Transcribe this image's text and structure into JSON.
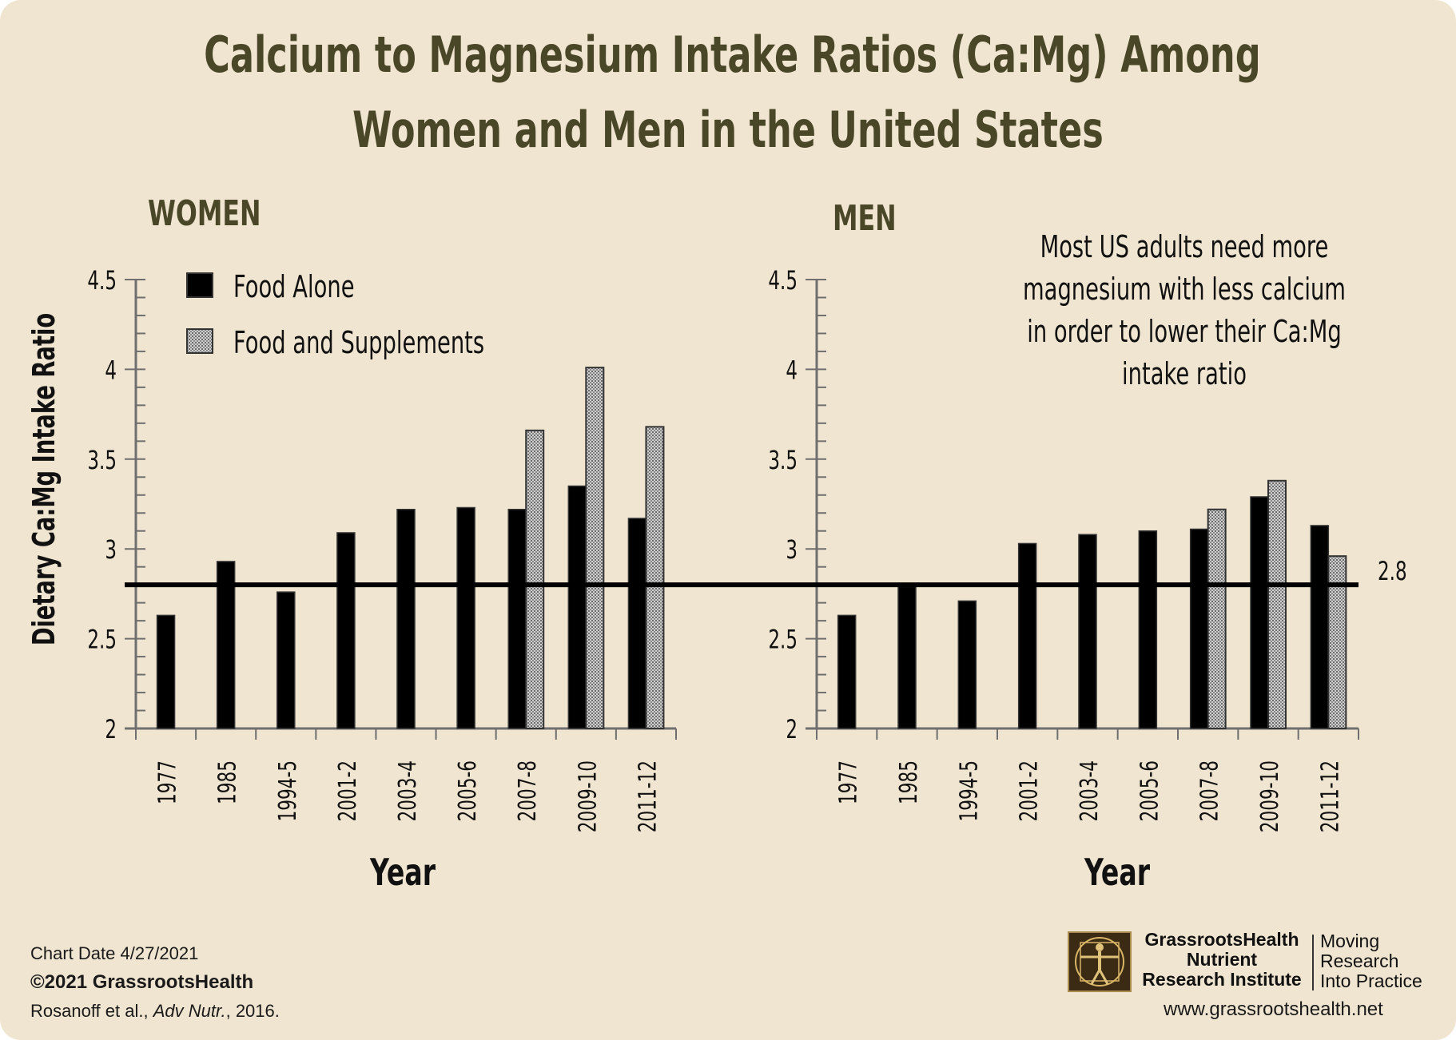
{
  "title_lines": [
    "Calcium to Magnesium Intake Ratios (Ca:Mg) Among",
    "Women and Men in the United States"
  ],
  "colors": {
    "background": "#f0e5d1",
    "title": "#4a4628",
    "food_alone": "#000000",
    "food_and_supplements": "#a8a8a8"
  },
  "annotation": {
    "lines": [
      "Most US adults need more",
      "magnesium with less calcium",
      "in order to lower their Ca:Mg",
      "intake ratio"
    ]
  },
  "reference_label": "2.8",
  "chart_data": [
    {
      "type": "bar",
      "title": "WOMEN",
      "xlabel": "Year",
      "ylabel": "Dietary Ca:Mg Intake Ratio",
      "ylim": [
        2,
        4.5
      ],
      "yticks": [
        "2",
        "2.5",
        "3",
        "3.5",
        "4",
        "4.5"
      ],
      "categories": [
        "1977",
        "1985",
        "1994-5",
        "2001-2",
        "2003-4",
        "2005-6",
        "2007-8",
        "2009-10",
        "2011-12"
      ],
      "series": [
        {
          "name": "Food Alone",
          "values": [
            2.63,
            2.93,
            2.76,
            3.09,
            3.22,
            3.23,
            3.22,
            3.35,
            3.17
          ]
        },
        {
          "name": "Food and Supplements",
          "values": [
            null,
            null,
            null,
            null,
            null,
            null,
            3.66,
            4.01,
            3.68
          ]
        }
      ],
      "reference_line": 2.8,
      "legend": "top-left"
    },
    {
      "type": "bar",
      "title": "MEN",
      "xlabel": "Year",
      "ylabel": "",
      "ylim": [
        2,
        4.5
      ],
      "yticks": [
        "2",
        "2.5",
        "3",
        "3.5",
        "4",
        "4.5"
      ],
      "categories": [
        "1977",
        "1985",
        "1994-5",
        "2001-2",
        "2003-4",
        "2005-6",
        "2007-8",
        "2009-10",
        "2011-12"
      ],
      "series": [
        {
          "name": "Food Alone",
          "values": [
            2.63,
            2.79,
            2.71,
            3.03,
            3.08,
            3.1,
            3.11,
            3.29,
            3.13
          ]
        },
        {
          "name": "Food and Supplements",
          "values": [
            null,
            null,
            null,
            null,
            null,
            null,
            3.22,
            3.38,
            2.96
          ]
        }
      ],
      "reference_line": 2.8
    }
  ],
  "footer": {
    "chart_date": "Chart Date 4/27/2021",
    "copyright": "©2021 GrassrootsHealth",
    "citation_authors": "Rosanoff et al., ",
    "citation_journal": "Adv Nutr.",
    "citation_year": ", 2016."
  },
  "logo": {
    "name_lines": [
      "GrassrootsHealth",
      "Nutrient",
      "Research Institute"
    ],
    "tagline_lines": [
      "Moving",
      "Research",
      "Into Practice"
    ],
    "website": "www.grassrootshealth.net"
  }
}
